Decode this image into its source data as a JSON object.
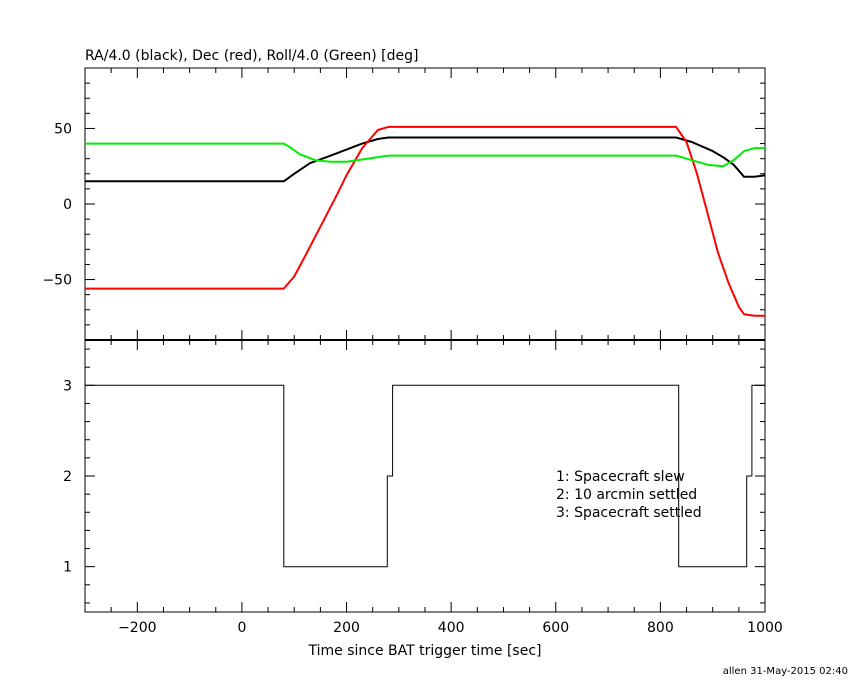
{
  "chart_data": [
    {
      "type": "line",
      "title": "RA/4.0 (black), Dec (red), Roll/4.0 (Green) [deg]",
      "xlabel": "Time since BAT trigger time [sec]",
      "ylabel": "",
      "xlim": [
        -300,
        1000
      ],
      "ylim": [
        -90,
        90
      ],
      "yticks": [
        -50,
        0,
        50
      ],
      "xticks": [
        -200,
        0,
        200,
        400,
        600,
        800,
        1000
      ],
      "grid": false,
      "series": [
        {
          "color": "#000000",
          "x": [
            -300,
            80,
            100,
            130,
            170,
            200,
            230,
            260,
            280,
            360,
            600,
            830,
            860,
            900,
            920,
            940,
            960,
            980,
            1000
          ],
          "y": [
            15,
            15,
            20,
            27,
            32,
            36,
            40,
            43,
            44,
            44,
            44,
            44,
            41,
            35,
            31,
            26,
            18,
            18,
            19
          ]
        },
        {
          "color": "#ff0000",
          "x": [
            -300,
            80,
            100,
            120,
            150,
            180,
            200,
            230,
            260,
            280,
            360,
            600,
            830,
            850,
            870,
            890,
            910,
            930,
            950,
            960,
            980,
            1000
          ],
          "y": [
            -56,
            -56,
            -48,
            -35,
            -15,
            5,
            19,
            37,
            49,
            51,
            51,
            51,
            51,
            41,
            20,
            -6,
            -32,
            -52,
            -68,
            -73,
            -74,
            -74
          ]
        },
        {
          "color": "#00ee00",
          "x": [
            -300,
            80,
            90,
            110,
            140,
            170,
            200,
            220,
            240,
            280,
            360,
            600,
            830,
            860,
            890,
            920,
            940,
            960,
            980,
            1000
          ],
          "y": [
            40,
            40,
            38,
            33,
            29,
            28,
            28,
            29,
            30,
            32,
            32,
            32,
            32,
            29,
            26,
            25,
            29,
            35,
            37,
            37
          ]
        }
      ]
    },
    {
      "type": "line",
      "title": "",
      "xlabel": "Time since BAT trigger time [sec]",
      "ylabel": "",
      "xlim": [
        -300,
        1000
      ],
      "ylim": [
        0.5,
        3.5
      ],
      "yticks": [
        1,
        2,
        3
      ],
      "xticks": [
        -200,
        0,
        200,
        400,
        600,
        800,
        1000
      ],
      "step": true,
      "grid": false,
      "annotations": [
        "1: Spacecraft slew",
        "2: 10 arcmin settled",
        "3: Spacecraft settled"
      ],
      "series": [
        {
          "color": "#000000",
          "x": [
            -300,
            80,
            278,
            288,
            835,
            965,
            975,
            1000
          ],
          "y": [
            3,
            1,
            2,
            3,
            1,
            2,
            3,
            3
          ]
        }
      ]
    }
  ],
  "footer": "allen 31-May-2015 02:40"
}
